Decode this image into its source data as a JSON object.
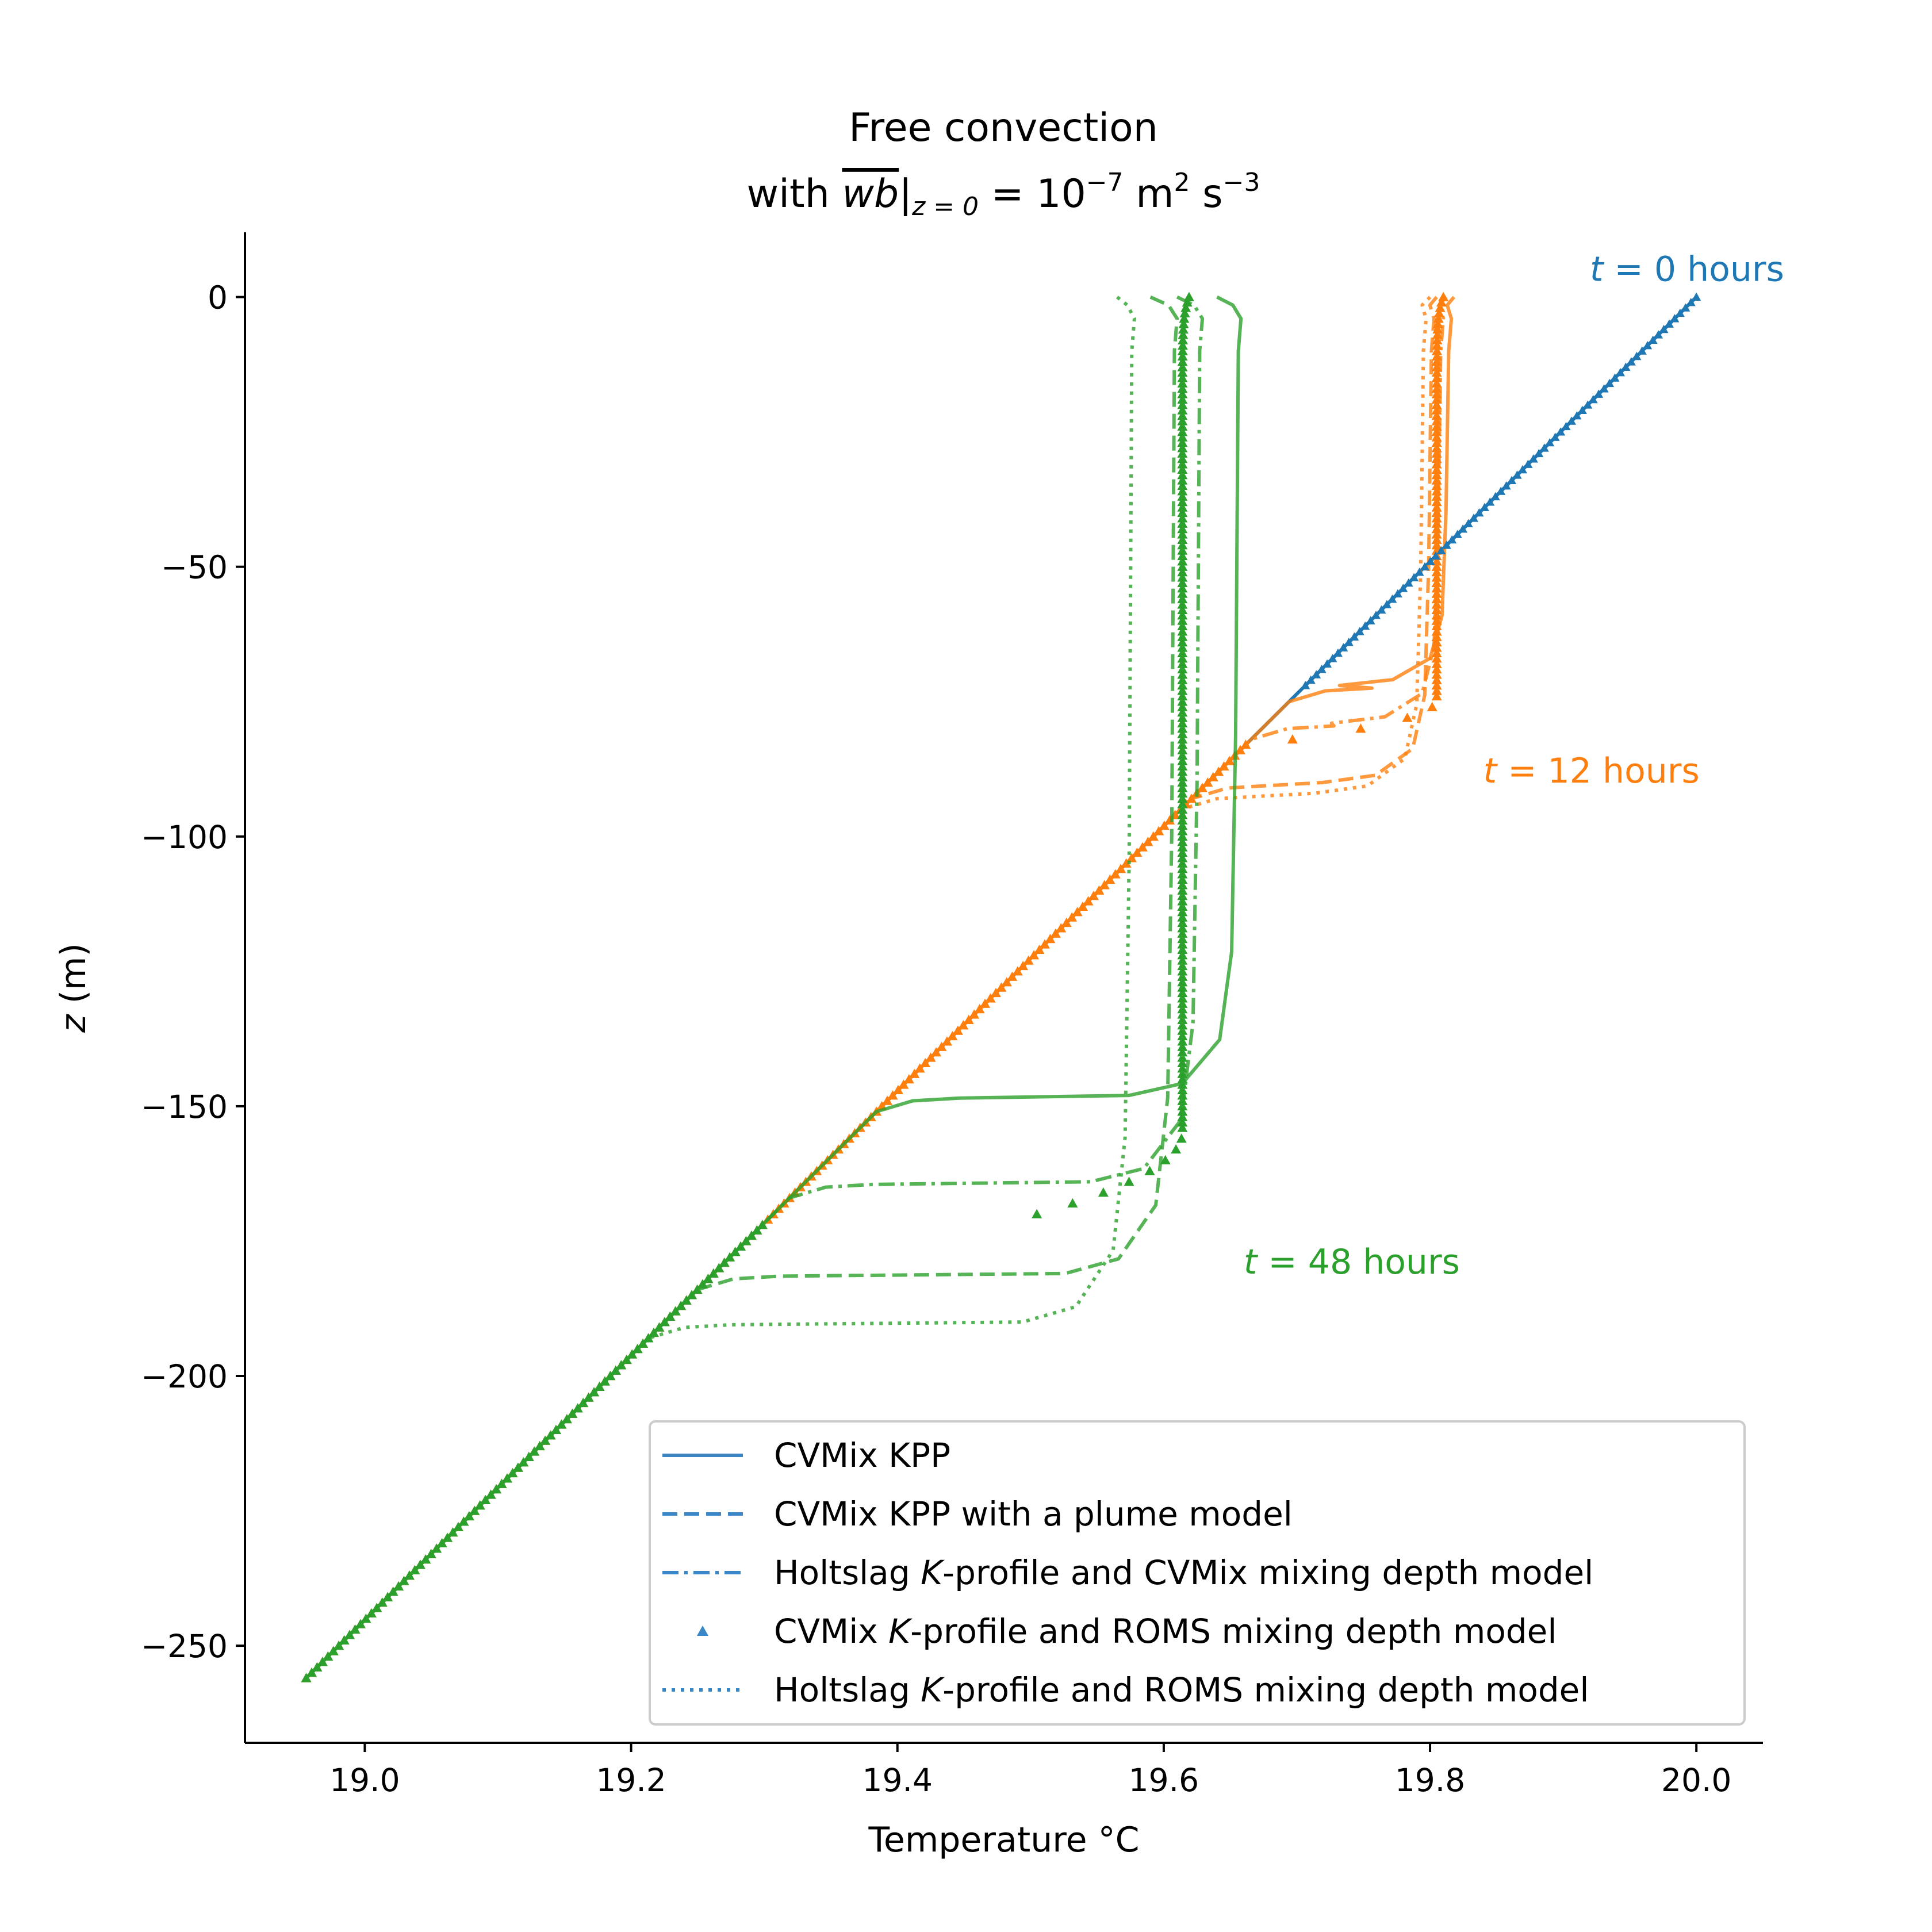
{
  "chart_data": {
    "type": "line",
    "title_line1": "Free convection",
    "title_line2": {
      "prefix": "with ",
      "flux_symbol": "wb",
      "subscript": "z = 0",
      "equals": " = 10",
      "exponent": "−7",
      "units": " m",
      "units_exp1": "2",
      "units_mid": " s",
      "units_exp2": "−3"
    },
    "xlabel": "Temperature  °C",
    "ylabel": "z (m)",
    "xlim": [
      18.91,
      20.05
    ],
    "ylim": [
      -268,
      12
    ],
    "xticks": [
      19.0,
      19.2,
      19.4,
      19.6,
      19.8,
      20.0
    ],
    "xtick_labels": [
      "19.0",
      "19.2",
      "19.4",
      "19.6",
      "19.8",
      "20.0"
    ],
    "yticks": [
      0,
      -50,
      -100,
      -150,
      -200,
      -250
    ],
    "ytick_labels": [
      "0",
      "−50",
      "−100",
      "−150",
      "−200",
      "−250"
    ],
    "initial_profile": {
      "T_surface": 20.0,
      "z_bottom": -256,
      "T_bottom": 18.956
    },
    "colors": {
      "t0": "#1f77b4",
      "t12": "#ff7f0e",
      "t48": "#2ca02c",
      "legend": "#3a86c6"
    },
    "annotations": [
      {
        "t": "t",
        "text": " = 0 hours",
        "x": 19.92,
        "y": 3,
        "color": "#1f77b4"
      },
      {
        "t": "t",
        "text": " = 12 hours",
        "x": 19.84,
        "y": -90,
        "color": "#ff7f0e"
      },
      {
        "t": "t",
        "text": " = 48 hours",
        "x": 19.66,
        "y": -181,
        "color": "#2ca02c"
      }
    ],
    "series": [
      {
        "name": "CVMix KPP",
        "style": "solid",
        "time": 12,
        "T_surface": 19.825,
        "T_mixed": 19.812,
        "h": 72,
        "top_hook_T": 19.818
      },
      {
        "name": "CVMix KPP with a plume model",
        "style": "dashed",
        "time": 12,
        "T_surface": 19.81,
        "T_mixed": 19.799,
        "h": 90,
        "top_hook_T": 19.805
      },
      {
        "name": "Holtslag K-profile and CVMix mixing depth model",
        "style": "dashdot",
        "time": 12,
        "T_surface": 19.817,
        "T_mixed": 19.806,
        "h": 79,
        "top_hook_T": 19.812
      },
      {
        "name": "CVMix K-profile and ROMS mixing depth model",
        "style": "markers",
        "time": 12,
        "T_surface": 19.815,
        "T_mixed": 19.805,
        "h": 83
      },
      {
        "name": "Holtslag K-profile and ROMS mixing depth model",
        "style": "dotted",
        "time": 12,
        "T_surface": 19.805,
        "T_mixed": 19.793,
        "h": 92,
        "top_hook_T": 19.8
      },
      {
        "name": "CVMix KPP",
        "style": "solid",
        "time": 48,
        "T_surface": 19.652,
        "T_mixed": 19.654,
        "h": 148,
        "top_hook_T": 19.64
      },
      {
        "name": "CVMix KPP with a plume model",
        "style": "dashed",
        "time": 48,
        "T_surface": 19.6,
        "T_mixed": 19.606,
        "h": 181,
        "top_hook_T": 19.59
      },
      {
        "name": "Holtslag K-profile and CVMix mixing depth model",
        "style": "dashdot",
        "time": 48,
        "T_surface": 19.62,
        "T_mixed": 19.625,
        "h": 164,
        "top_hook_T": 19.61
      },
      {
        "name": "CVMix K-profile and ROMS mixing depth model",
        "style": "markers",
        "time": 48,
        "T_surface": 19.618,
        "T_mixed": 19.614,
        "h": 172
      },
      {
        "name": "Holtslag K-profile and ROMS mixing depth model",
        "style": "dotted",
        "time": 48,
        "T_surface": 19.572,
        "T_mixed": 19.574,
        "h": 190,
        "top_hook_T": 19.565
      }
    ],
    "legend": {
      "placement": "lower-right",
      "entries": [
        {
          "style": "solid",
          "plain": "CVMix KPP"
        },
        {
          "style": "dashed",
          "plain": "CVMix KPP with a plume model"
        },
        {
          "style": "dashdot",
          "before": "Holtslag ",
          "italic": "K",
          "after": "-profile and CVMix mixing depth model"
        },
        {
          "style": "markers",
          "before": "CVMix ",
          "italic": "K",
          "after": "-profile and ROMS mixing depth model"
        },
        {
          "style": "dotted",
          "before": "Holtslag ",
          "italic": "K",
          "after": "-profile and ROMS mixing depth model"
        }
      ]
    },
    "grid": false
  }
}
